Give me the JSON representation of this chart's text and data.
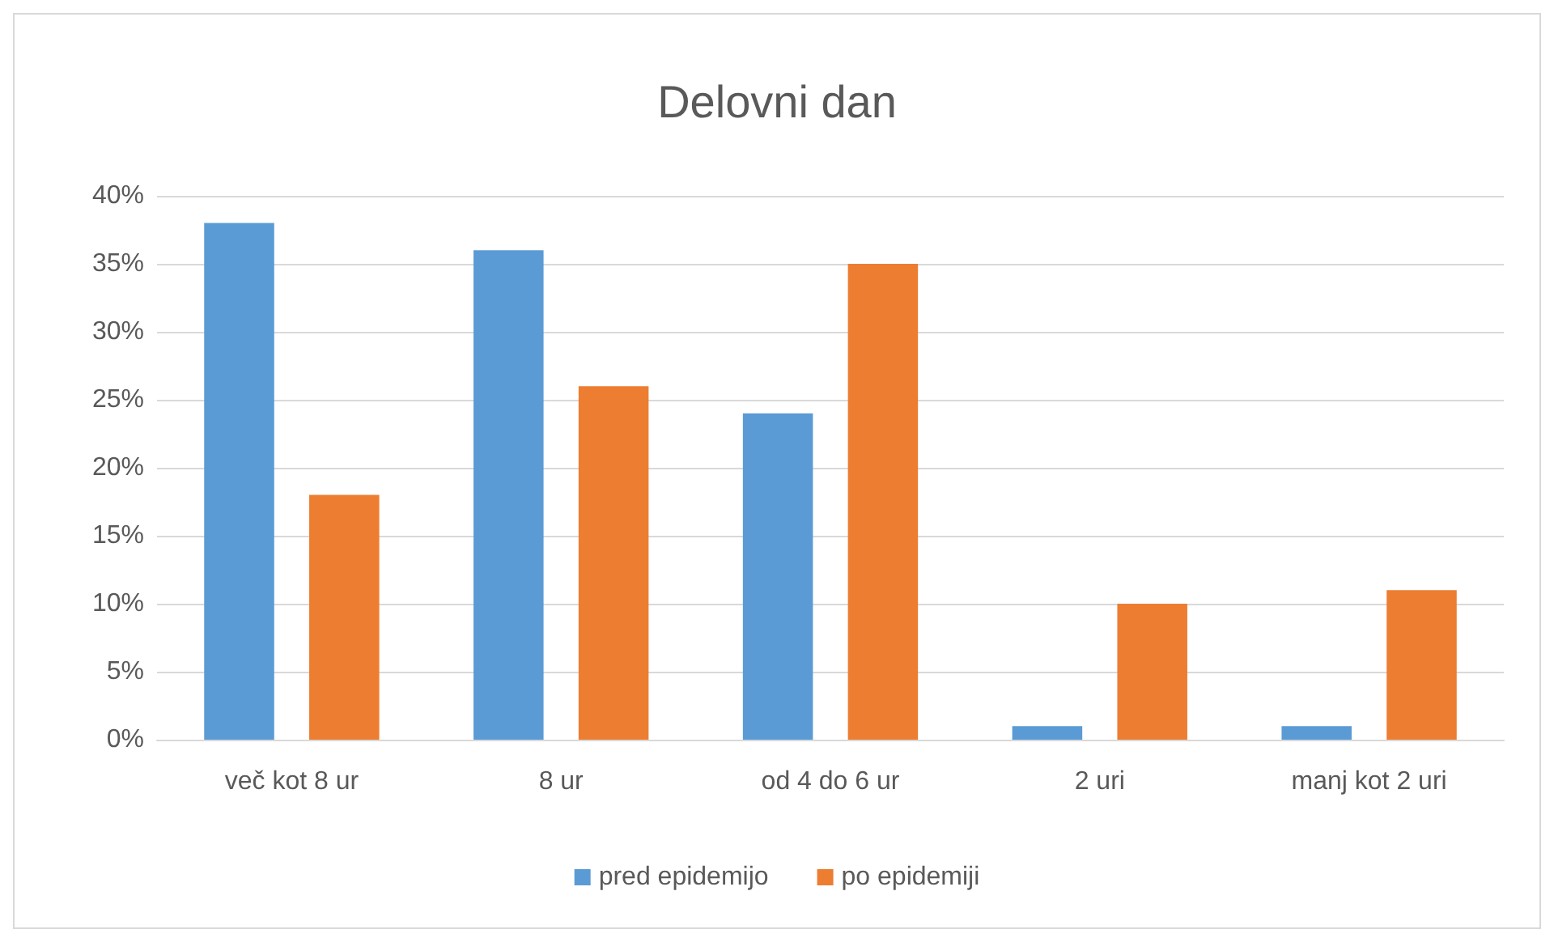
{
  "chart_data": {
    "type": "bar",
    "title": "Delovni dan",
    "categories": [
      "več kot 8 ur",
      "8 ur",
      "od 4 do 6 ur",
      "2 uri",
      "manj kot 2 uri"
    ],
    "series": [
      {
        "name": "pred epidemijo",
        "color": "#5b9bd5",
        "values": [
          38,
          36,
          24,
          1,
          1
        ]
      },
      {
        "name": "po epidemiji",
        "color": "#ed7d31",
        "values": [
          18,
          26,
          35,
          10,
          11
        ]
      }
    ],
    "ylim": [
      0,
      40
    ],
    "yticks": [
      {
        "value": 0,
        "label": "0%"
      },
      {
        "value": 5,
        "label": "5%"
      },
      {
        "value": 10,
        "label": "10%"
      },
      {
        "value": 15,
        "label": "15%"
      },
      {
        "value": 20,
        "label": "20%"
      },
      {
        "value": 25,
        "label": "25%"
      },
      {
        "value": 30,
        "label": "30%"
      },
      {
        "value": 35,
        "label": "35%"
      },
      {
        "value": 40,
        "label": "40%"
      }
    ],
    "grid": "y",
    "legend": "bottom"
  }
}
